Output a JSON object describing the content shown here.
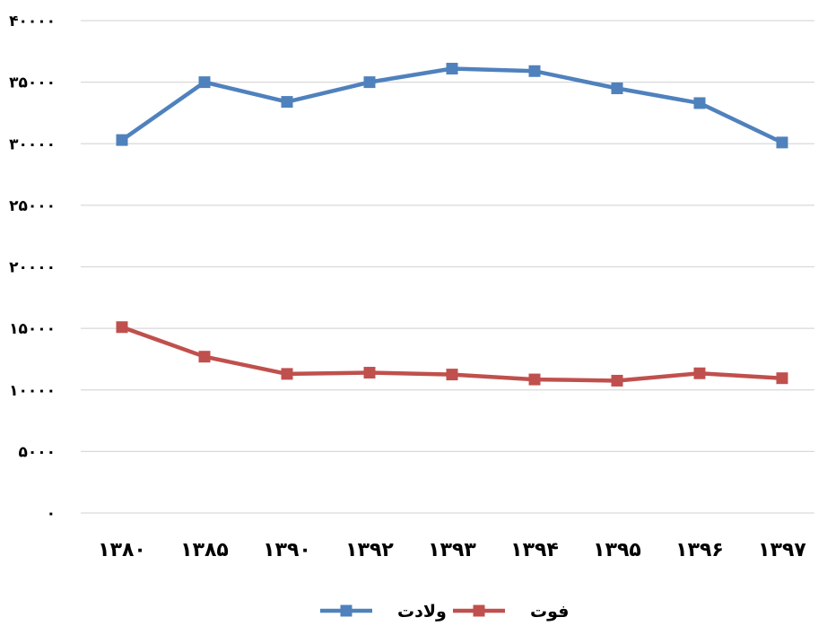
{
  "chart_data": {
    "type": "line",
    "title": "",
    "xlabel": "",
    "ylabel": "",
    "categories": [
      "۱۳۸۰",
      "۱۳۸۵",
      "۱۳۹۰",
      "۱۳۹۲",
      "۱۳۹۳",
      "۱۳۹۴",
      "۱۳۹۵",
      "۱۳۹۶",
      "۱۳۹۷"
    ],
    "y_ticks": [
      "۰",
      "۵۰۰۰",
      "۱۰۰۰۰",
      "۱۵۰۰۰",
      "۲۰۰۰۰",
      "۲۵۰۰۰",
      "۳۰۰۰۰",
      "۳۵۰۰۰",
      "۴۰۰۰۰"
    ],
    "ylim": [
      0,
      40000
    ],
    "grid": true,
    "legend_position": "bottom",
    "series": [
      {
        "name": "ولادت",
        "color": "#4F81BD",
        "values": [
          30300,
          35000,
          33400,
          35000,
          36100,
          35900,
          34500,
          33300,
          30100
        ]
      },
      {
        "name": "فوت",
        "color": "#C0504D",
        "values": [
          15100,
          12700,
          11300,
          11400,
          11250,
          10850,
          10750,
          11350,
          10950
        ]
      }
    ]
  }
}
